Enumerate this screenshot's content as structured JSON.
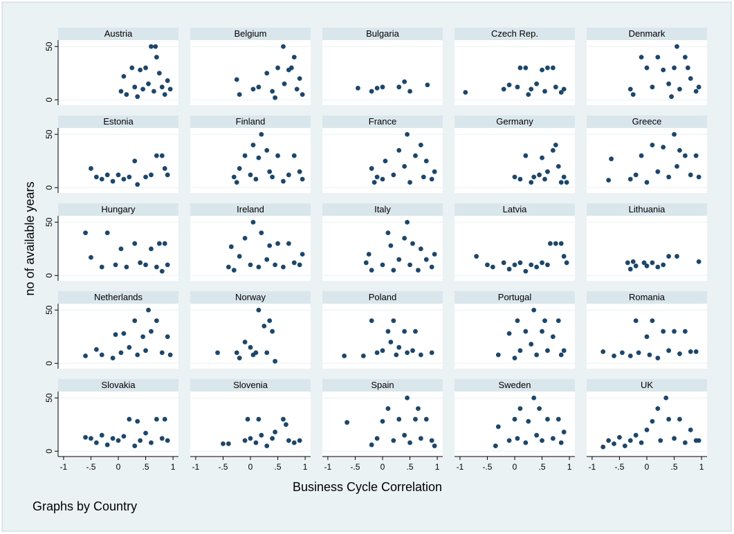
{
  "chart_data": {
    "type": "scatter",
    "y_label": "no of available years",
    "x_label": "Business Cycle Correlation",
    "note": "Graphs by Country",
    "color": "#1a476f",
    "grid": true,
    "xlim": [
      -1.1,
      1.1
    ],
    "xticks": [
      {
        "value": -1,
        "label": "-1"
      },
      {
        "value": -0.5,
        "label": "-.5"
      },
      0,
      {
        "value": 0.5,
        "label": ".5"
      },
      1
    ],
    "ylim": [
      -5,
      56
    ],
    "yticks": [
      0,
      50
    ],
    "panels": [
      {
        "title": "Austria",
        "x": [
          0.05,
          0.1,
          0.15,
          0.25,
          0.3,
          0.4,
          0.45,
          0.5,
          0.55,
          0.6,
          0.65,
          0.7,
          0.75,
          0.8,
          0.85,
          0.9,
          0.95,
          0.35,
          0.68
        ],
        "y": [
          8,
          22,
          5,
          30,
          12,
          28,
          10,
          30,
          15,
          50,
          8,
          40,
          25,
          12,
          5,
          18,
          10,
          3,
          50
        ]
      },
      {
        "title": "Belgium",
        "x": [
          -0.25,
          -0.2,
          0.05,
          0.15,
          0.3,
          0.4,
          0.5,
          0.6,
          0.62,
          0.7,
          0.8,
          0.85,
          0.9,
          0.95,
          0.45,
          0.75
        ],
        "y": [
          19,
          5,
          10,
          12,
          25,
          8,
          30,
          50,
          15,
          28,
          40,
          10,
          20,
          5,
          2,
          30
        ]
      },
      {
        "title": "Bulgaria",
        "x": [
          -0.45,
          -0.2,
          -0.1,
          0,
          0.3,
          0.4,
          0.5,
          0.82
        ],
        "y": [
          11,
          8,
          11,
          12,
          12,
          17,
          8,
          14
        ]
      },
      {
        "title": "Czech Rep.",
        "x": [
          -0.9,
          -0.2,
          -0.1,
          0.05,
          0.1,
          0.2,
          0.3,
          0.4,
          0.5,
          0.55,
          0.6,
          0.7,
          0.75,
          0.85,
          0.9,
          0.25
        ],
        "y": [
          7,
          10,
          14,
          12,
          30,
          30,
          10,
          15,
          28,
          8,
          30,
          30,
          12,
          7,
          10,
          5
        ]
      },
      {
        "title": "Denmark",
        "x": [
          -0.3,
          -0.25,
          -0.1,
          0,
          0.1,
          0.2,
          0.3,
          0.4,
          0.5,
          0.55,
          0.6,
          0.7,
          0.75,
          0.8,
          0.9,
          0.95,
          0.45
        ],
        "y": [
          10,
          5,
          40,
          30,
          12,
          40,
          28,
          15,
          30,
          50,
          10,
          40,
          30,
          20,
          8,
          12,
          3
        ]
      },
      {
        "title": "Estonia",
        "x": [
          -0.5,
          -0.4,
          -0.3,
          -0.2,
          -0.1,
          0,
          0.1,
          0.2,
          0.3,
          0.35,
          0.5,
          0.6,
          0.7,
          0.8,
          0.85,
          0.9
        ],
        "y": [
          18,
          10,
          8,
          12,
          6,
          12,
          8,
          10,
          25,
          3,
          10,
          12,
          30,
          30,
          18,
          12
        ]
      },
      {
        "title": "Finland",
        "x": [
          -0.3,
          -0.25,
          -0.2,
          -0.1,
          0,
          0.05,
          0.1,
          0.15,
          0.2,
          0.3,
          0.35,
          0.4,
          0.5,
          0.6,
          0.7,
          0.8,
          0.9,
          0.95
        ],
        "y": [
          10,
          5,
          18,
          30,
          12,
          40,
          8,
          28,
          50,
          35,
          15,
          10,
          30,
          6,
          12,
          30,
          15,
          8
        ]
      },
      {
        "title": "France",
        "x": [
          -0.2,
          -0.15,
          -0.1,
          0,
          0.05,
          0.2,
          0.3,
          0.4,
          0.45,
          0.5,
          0.6,
          0.7,
          0.75,
          0.8,
          0.9,
          0.95
        ],
        "y": [
          18,
          5,
          10,
          8,
          25,
          12,
          35,
          20,
          50,
          5,
          30,
          40,
          10,
          25,
          8,
          15
        ]
      },
      {
        "title": "Germany",
        "x": [
          0,
          0.1,
          0.2,
          0.3,
          0.35,
          0.45,
          0.5,
          0.55,
          0.6,
          0.7,
          0.75,
          0.8,
          0.85,
          0.9,
          0.95
        ],
        "y": [
          10,
          8,
          30,
          5,
          10,
          12,
          28,
          8,
          15,
          35,
          40,
          20,
          5,
          10,
          5
        ]
      },
      {
        "title": "Greece",
        "x": [
          -0.7,
          -0.65,
          -0.3,
          -0.2,
          -0.1,
          0,
          0.1,
          0.2,
          0.3,
          0.4,
          0.5,
          0.55,
          0.6,
          0.7,
          0.8,
          0.9,
          0.95
        ],
        "y": [
          7,
          27,
          8,
          12,
          30,
          5,
          40,
          15,
          38,
          10,
          50,
          20,
          35,
          30,
          12,
          30,
          10
        ]
      },
      {
        "title": "Hungary",
        "x": [
          -0.6,
          -0.5,
          -0.3,
          -0.2,
          -0.05,
          0.05,
          0.15,
          0.3,
          0.4,
          0.5,
          0.6,
          0.7,
          0.75,
          0.85,
          0.9,
          0.8
        ],
        "y": [
          40,
          17,
          8,
          40,
          10,
          25,
          8,
          30,
          12,
          10,
          25,
          8,
          30,
          30,
          10,
          4
        ]
      },
      {
        "title": "Ireland",
        "x": [
          -0.4,
          -0.35,
          -0.3,
          -0.2,
          -0.1,
          0,
          0.05,
          0.15,
          0.2,
          0.3,
          0.35,
          0.45,
          0.5,
          0.6,
          0.7,
          0.8,
          0.9,
          0.95
        ],
        "y": [
          8,
          27,
          5,
          18,
          35,
          10,
          50,
          8,
          40,
          15,
          28,
          10,
          30,
          8,
          30,
          12,
          10,
          20
        ]
      },
      {
        "title": "Italy",
        "x": [
          -0.3,
          -0.25,
          -0.2,
          0,
          0.1,
          0.15,
          0.2,
          0.3,
          0.4,
          0.45,
          0.5,
          0.55,
          0.65,
          0.7,
          0.8,
          0.9,
          0.95
        ],
        "y": [
          12,
          20,
          5,
          10,
          40,
          28,
          5,
          15,
          35,
          50,
          10,
          30,
          5,
          25,
          15,
          8,
          20
        ]
      },
      {
        "title": "Latvia",
        "x": [
          -0.7,
          -0.5,
          -0.4,
          -0.2,
          -0.1,
          0,
          0.1,
          0.2,
          0.3,
          0.4,
          0.5,
          0.6,
          0.65,
          0.75,
          0.85,
          0.9,
          0.95
        ],
        "y": [
          18,
          10,
          8,
          12,
          6,
          10,
          12,
          4,
          10,
          8,
          12,
          10,
          30,
          30,
          30,
          18,
          12
        ]
      },
      {
        "title": "Lithuania",
        "x": [
          -0.35,
          -0.3,
          -0.25,
          -0.2,
          -0.05,
          0,
          0.1,
          0.2,
          0.3,
          0.4,
          0.55,
          0.95
        ],
        "y": [
          12,
          6,
          13,
          9,
          12,
          9,
          12,
          8,
          10,
          18,
          18,
          13
        ]
      },
      {
        "title": "Netherlands",
        "x": [
          -0.6,
          -0.4,
          -0.3,
          -0.1,
          -0.05,
          0.05,
          0.1,
          0.2,
          0.3,
          0.35,
          0.45,
          0.5,
          0.55,
          0.6,
          0.7,
          0.8,
          0.9,
          0.95
        ],
        "y": [
          7,
          13,
          8,
          5,
          27,
          10,
          28,
          15,
          40,
          8,
          25,
          12,
          50,
          30,
          40,
          10,
          25,
          8
        ]
      },
      {
        "title": "Norway",
        "x": [
          -0.6,
          -0.25,
          -0.2,
          -0.1,
          0,
          0.05,
          0.1,
          0.15,
          0.25,
          0.3,
          0.35,
          0.4,
          0.45
        ],
        "y": [
          10,
          10,
          5,
          20,
          15,
          8,
          10,
          50,
          35,
          10,
          40,
          30,
          2
        ]
      },
      {
        "title": "Poland",
        "x": [
          -0.7,
          -0.35,
          -0.2,
          -0.1,
          0,
          0.1,
          0.15,
          0.2,
          0.25,
          0.3,
          0.4,
          0.45,
          0.55,
          0.6,
          0.7,
          0.9
        ],
        "y": [
          7,
          7,
          40,
          10,
          12,
          30,
          20,
          40,
          8,
          15,
          30,
          10,
          12,
          30,
          8,
          10
        ]
      },
      {
        "title": "Portugal",
        "x": [
          -0.3,
          -0.1,
          0,
          0.05,
          0.1,
          0.2,
          0.3,
          0.35,
          0.4,
          0.5,
          0.55,
          0.6,
          0.7,
          0.8,
          0.85,
          0.9
        ],
        "y": [
          8,
          28,
          5,
          40,
          12,
          30,
          18,
          50,
          8,
          30,
          40,
          12,
          25,
          40,
          8,
          12
        ]
      },
      {
        "title": "Romania",
        "x": [
          -0.8,
          -0.6,
          -0.45,
          -0.3,
          -0.2,
          -0.15,
          0,
          0.05,
          0.1,
          0.2,
          0.3,
          0.4,
          0.5,
          0.6,
          0.7,
          0.8,
          0.9
        ],
        "y": [
          11,
          7,
          10,
          7,
          40,
          10,
          25,
          8,
          40,
          5,
          30,
          12,
          30,
          9,
          30,
          11,
          11
        ]
      },
      {
        "title": "Slovakia",
        "x": [
          -0.6,
          -0.5,
          -0.4,
          -0.3,
          -0.2,
          -0.1,
          0,
          0.1,
          0.2,
          0.3,
          0.35,
          0.4,
          0.5,
          0.6,
          0.7,
          0.8,
          0.85,
          0.9
        ],
        "y": [
          13,
          12,
          8,
          15,
          6,
          12,
          10,
          14,
          30,
          5,
          28,
          10,
          17,
          8,
          30,
          12,
          30,
          10
        ]
      },
      {
        "title": "Slovenia",
        "x": [
          -0.5,
          -0.4,
          -0.1,
          -0.05,
          0,
          0.1,
          0.15,
          0.2,
          0.3,
          0.4,
          0.45,
          0.6,
          0.65,
          0.7,
          0.8,
          0.9
        ],
        "y": [
          7,
          7,
          10,
          30,
          12,
          8,
          30,
          15,
          5,
          12,
          18,
          30,
          25,
          10,
          8,
          10
        ]
      },
      {
        "title": "Spain",
        "x": [
          -0.65,
          -0.2,
          -0.1,
          0,
          0.1,
          0.2,
          0.3,
          0.4,
          0.45,
          0.5,
          0.6,
          0.65,
          0.7,
          0.8,
          0.9,
          0.95
        ],
        "y": [
          27,
          6,
          12,
          28,
          40,
          10,
          30,
          15,
          50,
          8,
          30,
          40,
          12,
          30,
          10,
          5
        ]
      },
      {
        "title": "Sweden",
        "x": [
          -0.35,
          -0.3,
          -0.1,
          0,
          0.05,
          0.1,
          0.2,
          0.25,
          0.35,
          0.4,
          0.45,
          0.5,
          0.6,
          0.7,
          0.8,
          0.85,
          0.9
        ],
        "y": [
          5,
          23,
          10,
          30,
          12,
          40,
          8,
          28,
          50,
          15,
          40,
          10,
          30,
          12,
          30,
          8,
          18
        ]
      },
      {
        "title": "UK",
        "x": [
          -0.8,
          -0.7,
          -0.6,
          -0.5,
          -0.4,
          -0.3,
          -0.2,
          -0.1,
          0,
          0.1,
          0.2,
          0.25,
          0.35,
          0.4,
          0.5,
          0.6,
          0.7,
          0.8,
          0.9,
          0.95
        ],
        "y": [
          4,
          10,
          7,
          13,
          5,
          10,
          15,
          8,
          20,
          28,
          40,
          10,
          50,
          30,
          12,
          30,
          8,
          20,
          10,
          10
        ]
      }
    ]
  }
}
